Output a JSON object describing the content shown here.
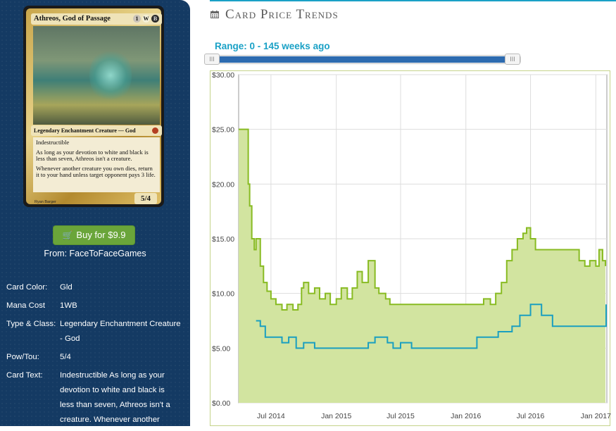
{
  "card": {
    "name": "Athreos, God of Passage",
    "mana": [
      "1",
      "W",
      "B"
    ],
    "type_line": "Legendary Enchantment Creature — God",
    "rules": [
      "Indestructible",
      "As long as your devotion to white and black is less than seven, Athreos isn't a creature.",
      "Whenever another creature you own dies, return it to your hand unless target opponent pays 3 life."
    ],
    "power_toughness": "5/4",
    "artist": "Ryan Barger"
  },
  "buy": {
    "label": "Buy for $9.9",
    "from": "From: FaceToFaceGames"
  },
  "details": [
    {
      "label": "Card Color:",
      "value": "Gld"
    },
    {
      "label": "Mana Cost",
      "value": "1WB"
    },
    {
      "label": "Type & Class:",
      "value": "Legendary Enchantment Creature - God"
    },
    {
      "label": "Pow/Tou:",
      "value": "5/4"
    },
    {
      "label": "Card Text:",
      "value": "Indestructible As long as your devotion to white and black is less than seven, Athreos isn't a creature. Whenever another"
    }
  ],
  "header": {
    "title": "Card Price Trends"
  },
  "range": {
    "label": "Range: 0 - 145 weeks ago",
    "min_weeks": 0,
    "max_weeks": 145
  },
  "colors": {
    "accent": "#1aa1c6",
    "series_paper": "#88bb22",
    "series_online": "#1a9fc0",
    "fill": "#d2e4a0",
    "sidebar": "#143a63"
  },
  "chart_data": {
    "type": "line",
    "yticks": [
      "$0.00",
      "$5.00",
      "$10.00",
      "$15.00",
      "$20.00",
      "$25.00",
      "$30.00"
    ],
    "ylim": [
      0,
      30
    ],
    "xticks": [
      "Jul 2014",
      "Jan 2015",
      "Jul 2015",
      "Jan 2016",
      "Jul 2016",
      "Jan 2017"
    ],
    "series": [
      {
        "x": [
          "2014-04-01",
          "2014-04-25",
          "2014-04-28",
          "2014-05-02",
          "2014-05-08",
          "2014-05-15",
          "2014-05-20",
          "2014-06-01",
          "2014-06-10",
          "2014-06-20",
          "2014-07-01",
          "2014-07-15",
          "2014-08-01",
          "2014-08-15",
          "2014-09-01",
          "2014-09-15",
          "2014-09-25",
          "2014-10-01",
          "2014-10-15",
          "2014-11-01",
          "2014-11-15",
          "2014-12-01",
          "2014-12-15",
          "2015-01-01",
          "2015-01-15",
          "2015-02-01",
          "2015-02-15",
          "2015-03-01",
          "2015-03-15",
          "2015-04-01",
          "2015-04-20",
          "2015-05-01",
          "2015-05-20",
          "2015-06-01",
          "2015-07-01",
          "2015-08-01",
          "2015-09-01",
          "2015-10-01",
          "2015-11-01",
          "2015-12-01",
          "2016-01-01",
          "2016-02-01",
          "2016-02-20",
          "2016-03-10",
          "2016-03-25",
          "2016-04-10",
          "2016-04-25",
          "2016-05-10",
          "2016-05-25",
          "2016-06-10",
          "2016-06-20",
          "2016-07-01",
          "2016-07-15",
          "2016-08-01",
          "2016-09-01",
          "2016-10-01",
          "2016-11-01",
          "2016-11-15",
          "2016-12-01",
          "2016-12-15",
          "2017-01-01",
          "2017-01-10",
          "2017-01-20",
          "2017-01-28"
        ],
        "values": [
          25,
          25,
          20,
          18,
          15,
          14,
          15,
          12.5,
          11,
          10.2,
          9.5,
          9,
          8.5,
          9,
          8.5,
          9,
          10.5,
          11,
          10,
          10.5,
          9.5,
          10,
          9,
          9.5,
          10.5,
          9.5,
          10.5,
          12,
          11,
          13,
          10.5,
          10,
          9.5,
          9,
          9,
          9,
          9,
          9,
          9,
          9,
          9,
          9,
          9.5,
          9,
          10,
          11,
          13,
          14,
          15,
          15.5,
          16,
          15,
          14,
          14,
          14,
          14,
          14,
          13,
          12.5,
          13,
          12.5,
          14,
          13,
          12.5
        ]
      },
      {
        "x": [
          "2014-05-20",
          "2014-06-01",
          "2014-06-15",
          "2014-07-01",
          "2014-08-01",
          "2014-08-20",
          "2014-09-10",
          "2014-10-01",
          "2014-11-01",
          "2014-12-01",
          "2015-01-01",
          "2015-02-01",
          "2015-03-01",
          "2015-04-01",
          "2015-04-20",
          "2015-05-10",
          "2015-05-25",
          "2015-06-10",
          "2015-07-01",
          "2015-08-01",
          "2015-09-01",
          "2015-10-01",
          "2015-11-01",
          "2015-12-01",
          "2016-01-01",
          "2016-02-01",
          "2016-03-01",
          "2016-04-01",
          "2016-04-20",
          "2016-05-10",
          "2016-06-01",
          "2016-07-01",
          "2016-08-01",
          "2016-08-20",
          "2016-09-01",
          "2016-10-01",
          "2016-11-01",
          "2016-12-01",
          "2017-01-01",
          "2017-01-15",
          "2017-01-25",
          "2017-01-30"
        ],
        "values": [
          7.5,
          7,
          6,
          6,
          5.5,
          6,
          5,
          5.5,
          5,
          5,
          5,
          5,
          5,
          5.5,
          6,
          6,
          5.5,
          5,
          5.5,
          5,
          5,
          5,
          5,
          5,
          5,
          6,
          6,
          6.5,
          6.5,
          7,
          8,
          9,
          8,
          8,
          7,
          7,
          7,
          7,
          7,
          7,
          7,
          9
        ]
      }
    ]
  }
}
